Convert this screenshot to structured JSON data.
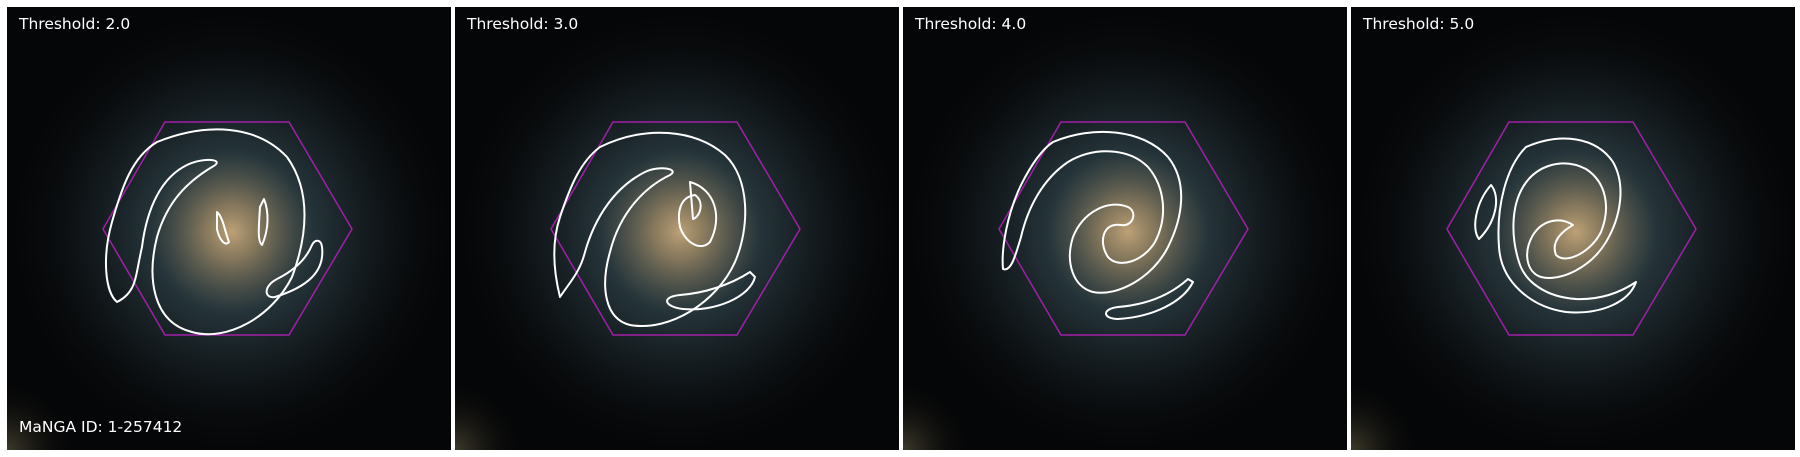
{
  "colors": {
    "background": "#050607",
    "galaxy_core": "#c7a97c",
    "galaxy_halo": "#3f5a63",
    "contour": "#ffffff",
    "hexagon": "#a020a8"
  },
  "galaxy_id_label": "MaNGA ID: 1-257412",
  "panels": [
    {
      "threshold_label": "Threshold: 2.0"
    },
    {
      "threshold_label": "Threshold: 3.0"
    },
    {
      "threshold_label": "Threshold: 4.0"
    },
    {
      "threshold_label": "Threshold: 5.0"
    }
  ]
}
